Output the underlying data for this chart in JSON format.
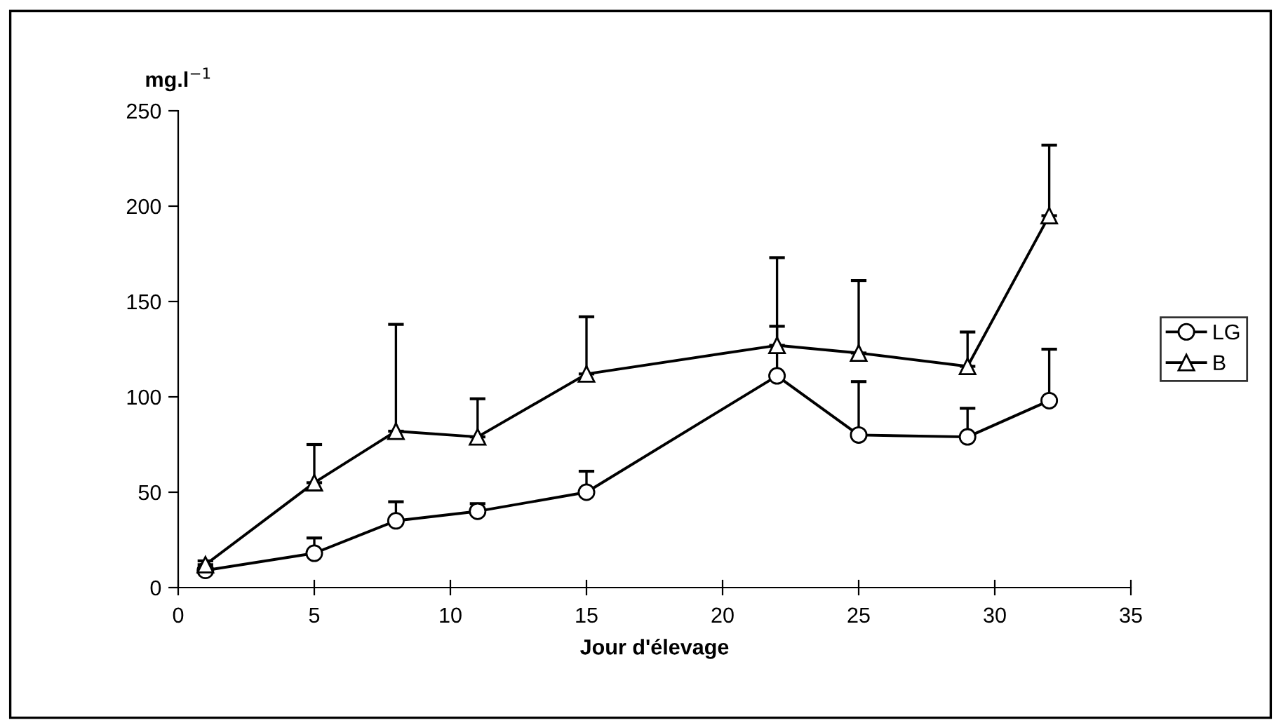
{
  "chart_data": {
    "type": "line",
    "xlabel": "Jour d'élevage",
    "ylabel": "mg.l$^{−1}$",
    "xlim": [
      0,
      35
    ],
    "xticks": [
      0,
      5,
      10,
      15,
      20,
      25,
      30,
      35
    ],
    "ylim": [
      0,
      250
    ],
    "yticks": [
      0,
      50,
      100,
      150,
      200,
      250
    ],
    "grid": false,
    "legend": "right",
    "line_style": "solid",
    "series": [
      {
        "name": "LG",
        "color": "#000000",
        "marker": "circle",
        "x": [
          1,
          5,
          8,
          11,
          15,
          22,
          25,
          29,
          32
        ],
        "values": [
          9,
          18,
          35,
          40,
          50,
          111,
          80,
          79,
          98
        ],
        "errors": [
          null,
          [
            18,
            26
          ],
          [
            35,
            45
          ],
          [
            40,
            44
          ],
          [
            50,
            61
          ],
          [
            111,
            137
          ],
          [
            80,
            108
          ],
          [
            79,
            94
          ],
          [
            98,
            125
          ]
        ]
      },
      {
        "name": "B",
        "color": "#000000",
        "marker": "triangle",
        "x": [
          1,
          5,
          8,
          11,
          15,
          22,
          25,
          29,
          32
        ],
        "values": [
          12,
          55,
          82,
          79,
          112,
          127,
          123,
          116,
          195
        ],
        "errors": [
          [
            12,
            14
          ],
          [
            55,
            75
          ],
          [
            82,
            138
          ],
          [
            79,
            99
          ],
          [
            112,
            142
          ],
          [
            127,
            173
          ],
          [
            123,
            161
          ],
          [
            116,
            134
          ],
          [
            195,
            232
          ]
        ]
      }
    ]
  }
}
